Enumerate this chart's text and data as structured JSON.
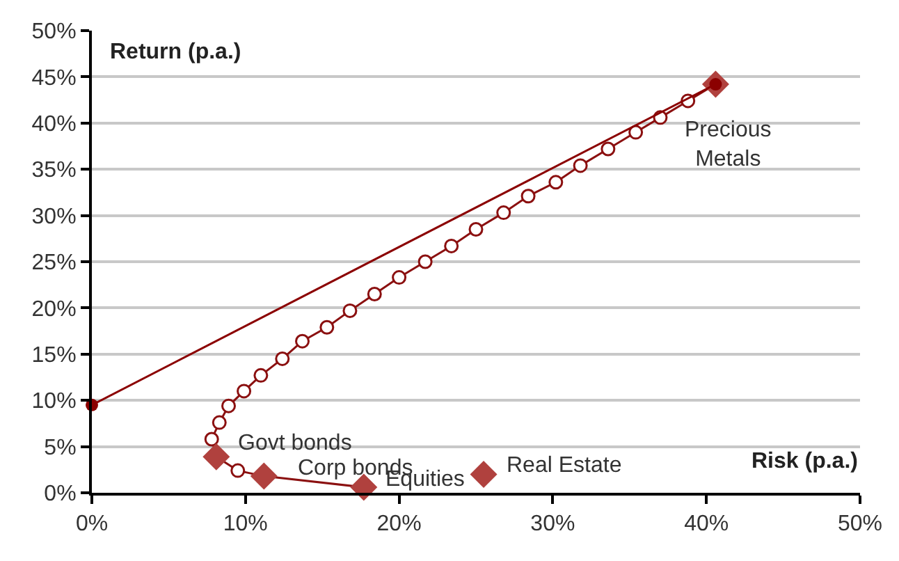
{
  "chart_data": {
    "type": "scatter",
    "xlabel": "Risk (p.a.)",
    "ylabel": "Return (p.a.)",
    "series": [
      {
        "type": "line",
        "marker": "none",
        "color": "#8b1010",
        "x": [
          17.7,
          11.2,
          9.5,
          8.1,
          7.8,
          8.3,
          8.9,
          9.9,
          11.0,
          12.4,
          13.7,
          15.3,
          16.8,
          18.4,
          20.0,
          21.7,
          23.4,
          25.0,
          26.8,
          28.4,
          30.2,
          31.8,
          33.6,
          35.4,
          37.0,
          38.8,
          40.6
        ],
        "values": [
          0.6,
          1.8,
          2.4,
          3.9,
          5.8,
          7.6,
          9.4,
          11.0,
          12.7,
          14.5,
          16.4,
          17.9,
          19.7,
          21.5,
          23.3,
          25.0,
          26.7,
          28.5,
          30.3,
          32.1,
          33.6,
          35.4,
          37.2,
          39.0,
          40.6,
          42.4,
          44.2
        ]
      },
      {
        "marker": "circle",
        "color": "#8b1010",
        "x": [
          9.5,
          7.8,
          8.3,
          8.9,
          9.9,
          11.0,
          12.4,
          13.7,
          15.3,
          16.8,
          18.4,
          20.0,
          21.7,
          23.4,
          25.0,
          26.8,
          28.4,
          30.2,
          31.8,
          33.6,
          35.4,
          37.0,
          38.8
        ],
        "values": [
          2.4,
          5.8,
          7.6,
          9.4,
          11.0,
          12.7,
          14.5,
          16.4,
          17.9,
          19.7,
          21.5,
          23.3,
          25.0,
          26.7,
          28.5,
          30.3,
          32.1,
          33.6,
          35.4,
          37.2,
          39.0,
          40.6,
          42.4
        ]
      },
      {
        "marker": "diamond",
        "color": "#b0413e",
        "x": [
          17.7,
          11.2,
          8.1,
          25.5,
          40.6
        ],
        "values": [
          0.6,
          1.8,
          3.9,
          2.0,
          44.2
        ]
      },
      {
        "type": "line",
        "marker": "circle",
        "color": "#8b0000",
        "x": [
          0,
          40.6
        ],
        "values": [
          9.5,
          44.2
        ]
      }
    ],
    "annotations": [
      {
        "text": "Precious\nMetals",
        "x": 40.6,
        "y": 44.2
      },
      {
        "text": "Govt bonds",
        "x": 8.1,
        "y": 3.9
      },
      {
        "text": "Corp bonds",
        "x": 11.2,
        "y": 1.8
      },
      {
        "text": "Equities",
        "x": 17.7,
        "y": 0.6
      },
      {
        "text": "Real Estate",
        "x": 25.5,
        "y": 2.0
      }
    ],
    "xlim": [
      0,
      50
    ],
    "ylim": [
      0,
      50
    ],
    "xticks": [
      {
        "value": 0,
        "label": "0%"
      },
      {
        "value": 10,
        "label": "10%"
      },
      {
        "value": 20,
        "label": "20%"
      },
      {
        "value": 30,
        "label": "30%"
      },
      {
        "value": 40,
        "label": "40%"
      },
      {
        "value": 50,
        "label": "50%"
      }
    ],
    "yticks": [
      {
        "value": 0,
        "label": "0%"
      },
      {
        "value": 5,
        "label": "5%"
      },
      {
        "value": 10,
        "label": "10%"
      },
      {
        "value": 15,
        "label": "15%"
      },
      {
        "value": 20,
        "label": "20%"
      },
      {
        "value": 25,
        "label": "25%"
      },
      {
        "value": 30,
        "label": "30%"
      },
      {
        "value": 35,
        "label": "35%"
      },
      {
        "value": 40,
        "label": "40%"
      },
      {
        "value": 45,
        "label": "45%"
      },
      {
        "value": 50,
        "label": "50%"
      }
    ],
    "grid": "y"
  }
}
